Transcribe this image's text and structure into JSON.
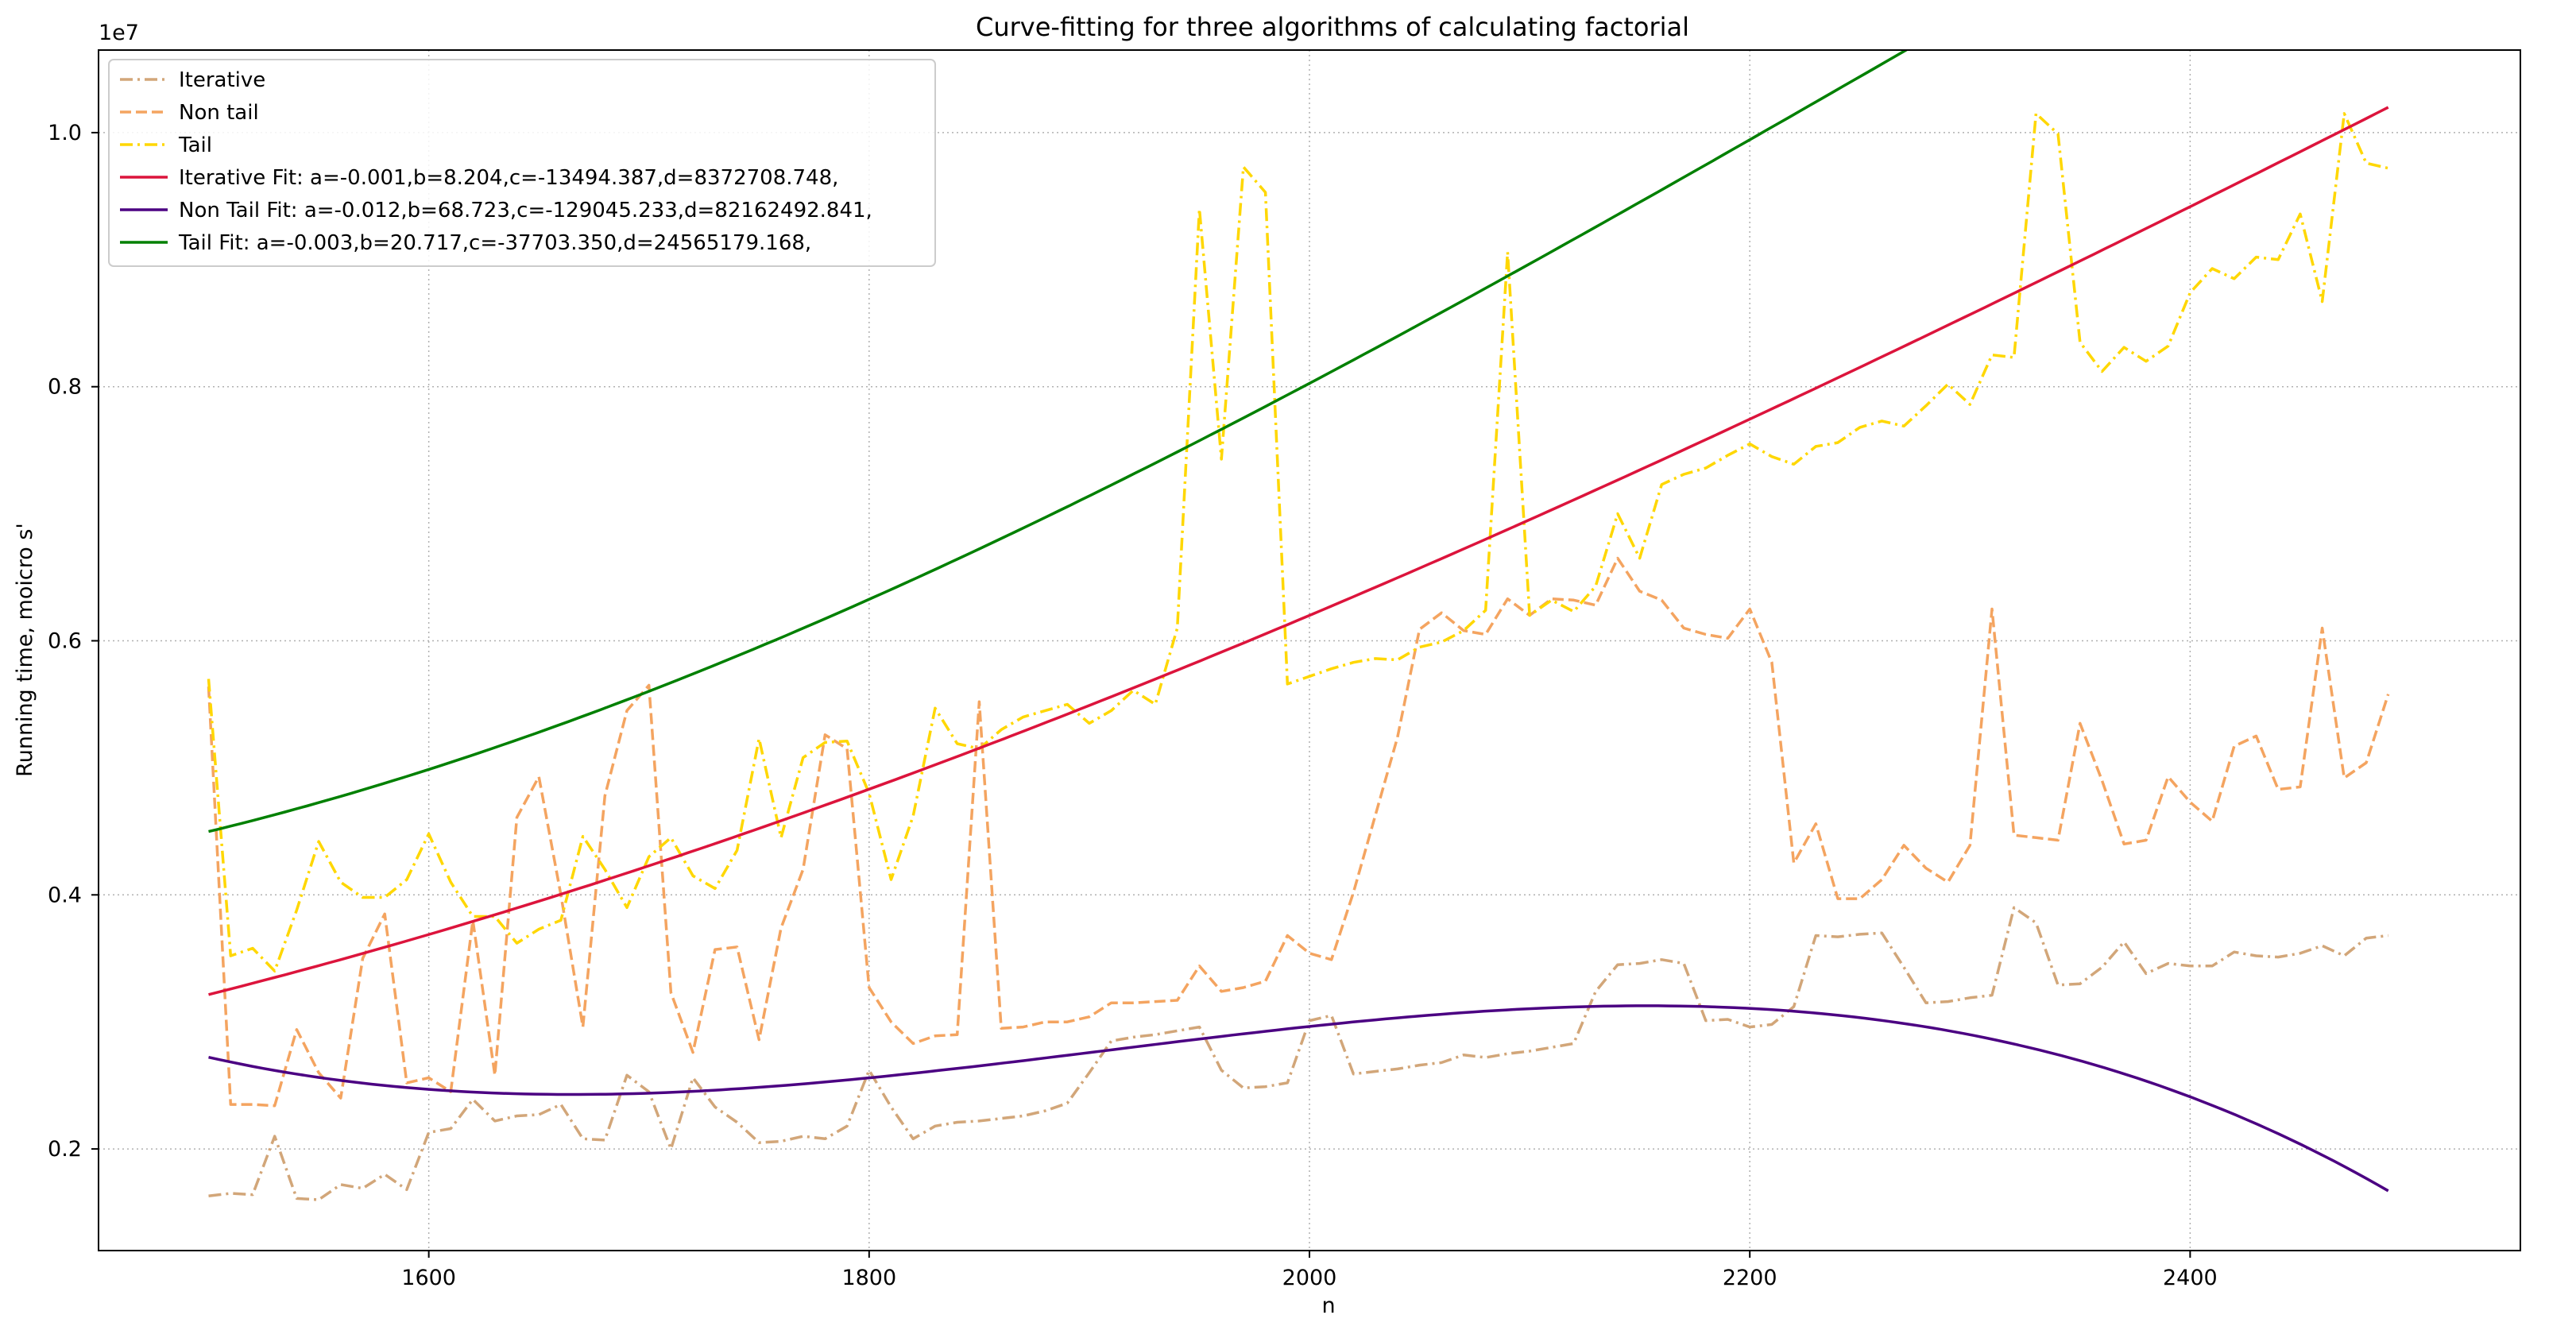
{
  "chart_data": {
    "type": "line",
    "title": "Curve-fitting for three algorithms of calculating factorial",
    "xlabel": "n",
    "ylabel": "Running time, moicro s'",
    "y_offset_label": "1e7",
    "xlim": [
      1450,
      2550
    ],
    "ylim": [
      1200000,
      10650000
    ],
    "xticks": [
      1600,
      1800,
      2000,
      2200,
      2400
    ],
    "yticks": [
      2000000,
      4000000,
      6000000,
      8000000,
      10000000
    ],
    "ytick_labels": [
      "0.2",
      "0.4",
      "0.6",
      "0.8",
      "1.0"
    ],
    "grid": true,
    "legend_position": "top-left",
    "x": [
      1500,
      1510,
      1520,
      1530,
      1540,
      1550,
      1560,
      1570,
      1580,
      1590,
      1600,
      1610,
      1620,
      1630,
      1640,
      1650,
      1660,
      1670,
      1680,
      1690,
      1700,
      1710,
      1720,
      1730,
      1740,
      1750,
      1760,
      1770,
      1780,
      1790,
      1800,
      1810,
      1820,
      1830,
      1840,
      1850,
      1860,
      1870,
      1880,
      1890,
      1900,
      1910,
      1920,
      1930,
      1940,
      1950,
      1960,
      1970,
      1980,
      1990,
      2000,
      2010,
      2020,
      2030,
      2040,
      2050,
      2060,
      2070,
      2080,
      2090,
      2100,
      2110,
      2120,
      2130,
      2140,
      2150,
      2160,
      2170,
      2180,
      2190,
      2200,
      2210,
      2220,
      2230,
      2240,
      2250,
      2260,
      2270,
      2280,
      2290,
      2300,
      2310,
      2320,
      2330,
      2340,
      2350,
      2360,
      2370,
      2380,
      2390,
      2400,
      2410,
      2420,
      2430,
      2440,
      2450,
      2460,
      2470,
      2480,
      2490
    ],
    "series": [
      {
        "name": "Iterative",
        "color": "#d2a679",
        "style": "dashdot",
        "values": [
          1630000,
          1650000,
          1640000,
          2100000,
          1610000,
          1600000,
          1720000,
          1690000,
          1800000,
          1680000,
          2130000,
          2160000,
          2390000,
          2220000,
          2260000,
          2270000,
          2350000,
          2080000,
          2070000,
          2580000,
          2450000,
          2000000,
          2560000,
          2330000,
          2210000,
          2050000,
          2060000,
          2100000,
          2080000,
          2180000,
          2620000,
          2330000,
          2080000,
          2180000,
          2210000,
          2220000,
          2240000,
          2260000,
          2300000,
          2360000,
          2600000,
          2850000,
          2880000,
          2900000,
          2930000,
          2960000,
          2620000,
          2480000,
          2490000,
          2520000,
          3010000,
          3050000,
          2590000,
          2610000,
          2630000,
          2660000,
          2680000,
          2740000,
          2720000,
          2750000,
          2770000,
          2800000,
          2830000,
          3240000,
          3450000,
          3460000,
          3490000,
          3460000,
          3010000,
          3020000,
          2960000,
          2980000,
          3120000,
          3680000,
          3670000,
          3690000,
          3700000,
          3430000,
          3150000,
          3160000,
          3190000,
          3210000,
          3900000,
          3780000,
          3290000,
          3300000,
          3430000,
          3630000,
          3380000,
          3460000,
          3440000,
          3440000,
          3550000,
          3520000,
          3510000,
          3540000,
          3600000,
          3520000,
          3660000,
          3680000
        ]
      },
      {
        "name": "Non tail",
        "color": "#f4a460",
        "style": "dashed",
        "values": [
          5640000,
          2350000,
          2350000,
          2340000,
          2940000,
          2600000,
          2400000,
          3500000,
          3850000,
          2520000,
          2560000,
          2450000,
          3800000,
          2580000,
          4610000,
          4930000,
          4000000,
          2960000,
          4780000,
          5450000,
          5650000,
          3230000,
          2760000,
          3570000,
          3590000,
          2860000,
          3740000,
          4200000,
          5260000,
          5150000,
          3270000,
          3000000,
          2830000,
          2890000,
          2900000,
          5520000,
          2950000,
          2960000,
          3000000,
          3000000,
          3040000,
          3150000,
          3150000,
          3160000,
          3170000,
          3440000,
          3240000,
          3270000,
          3320000,
          3680000,
          3540000,
          3490000,
          4020000,
          4630000,
          5240000,
          6090000,
          6220000,
          6080000,
          6050000,
          6330000,
          6200000,
          6330000,
          6320000,
          6280000,
          6650000,
          6390000,
          6320000,
          6100000,
          6050000,
          6020000,
          6250000,
          5830000,
          4250000,
          4560000,
          3970000,
          3970000,
          4120000,
          4390000,
          4210000,
          4100000,
          4390000,
          6250000,
          4470000,
          4450000,
          4430000,
          5350000,
          4900000,
          4400000,
          4430000,
          4930000,
          4730000,
          4580000,
          5170000,
          5250000,
          4830000,
          4850000,
          6100000,
          4920000,
          5040000,
          5580000
        ]
      },
      {
        "name": "Tail",
        "color": "#ffd700",
        "style": "dashdot",
        "values": [
          5700000,
          3520000,
          3580000,
          3400000,
          3880000,
          4420000,
          4100000,
          3980000,
          3980000,
          4120000,
          4480000,
          4100000,
          3830000,
          3830000,
          3620000,
          3730000,
          3800000,
          4460000,
          4200000,
          3900000,
          4300000,
          4450000,
          4150000,
          4050000,
          4350000,
          5230000,
          4450000,
          5080000,
          5200000,
          5210000,
          4800000,
          4120000,
          4620000,
          5470000,
          5190000,
          5150000,
          5300000,
          5400000,
          5450000,
          5500000,
          5350000,
          5450000,
          5610000,
          5500000,
          6100000,
          9400000,
          7430000,
          9730000,
          9530000,
          5660000,
          5720000,
          5780000,
          5830000,
          5860000,
          5850000,
          5950000,
          5990000,
          6080000,
          6240000,
          9060000,
          6200000,
          6320000,
          6230000,
          6430000,
          7000000,
          6650000,
          7230000,
          7310000,
          7360000,
          7460000,
          7550000,
          7450000,
          7390000,
          7530000,
          7560000,
          7680000,
          7730000,
          7690000,
          7850000,
          8020000,
          7860000,
          8250000,
          8230000,
          10150000,
          9990000,
          8350000,
          8120000,
          8310000,
          8200000,
          8320000,
          8740000,
          8930000,
          8850000,
          9020000,
          9000000,
          9360000,
          8670000,
          10150000,
          9760000,
          9720000
        ]
      }
    ],
    "fits": [
      {
        "name": "Iterative Fit: a=-0.001,b=8.204,c=-13494.387,d=8372708.748,",
        "color": "#dc143c",
        "style": "solid",
        "coeffs": [
          -0.001,
          8.204,
          -13494.387,
          8372708.748
        ]
      },
      {
        "name": "Non Tail Fit: a=-0.012,b=68.723,c=-129045.233,d=82162492.841,",
        "color": "#4b0082",
        "style": "solid",
        "coeffs": [
          -0.012,
          68.723,
          -129045.233,
          82162492.841
        ]
      },
      {
        "name": "Tail Fit: a=-0.003,b=20.717,c=-37703.350,d=24565179.168,",
        "color": "#008000",
        "style": "solid",
        "coeffs": [
          -0.003,
          20.717,
          -37703.35,
          24565179.168
        ]
      }
    ]
  }
}
